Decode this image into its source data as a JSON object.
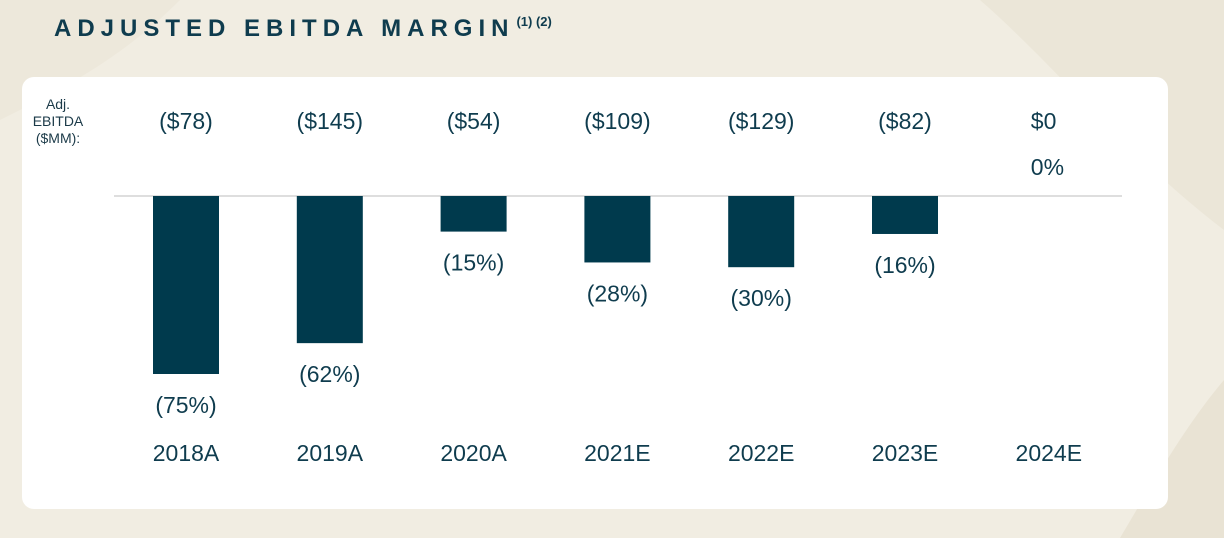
{
  "title": "ADJUSTED EBITDA MARGIN",
  "footnote_refs": "(1) (2)",
  "colors": {
    "bar": "#003a4d",
    "text": "#0f3c4e",
    "card": "#ffffff",
    "background": "#f1ede2"
  },
  "chart_data": {
    "type": "bar",
    "ylabel_lines": [
      "Adj.",
      "EBITDA",
      "($MM):"
    ],
    "categories": [
      "2018A",
      "2019A",
      "2020A",
      "2021E",
      "2022E",
      "2023E",
      "2024E"
    ],
    "series": [
      {
        "name": "Adjusted EBITDA Margin",
        "values": [
          -75,
          -62,
          -15,
          -28,
          -30,
          -16,
          0
        ]
      }
    ],
    "ebitda_labels": [
      "($78)",
      "($145)",
      "($54)",
      "($109)",
      "($129)",
      "($82)",
      "$0"
    ],
    "margin_labels": [
      "(75%)",
      "(62%)",
      "(15%)",
      "(28%)",
      "(30%)",
      "(16%)",
      "0%"
    ],
    "ylim": [
      -80,
      0
    ],
    "grid": false,
    "legend": "none"
  }
}
